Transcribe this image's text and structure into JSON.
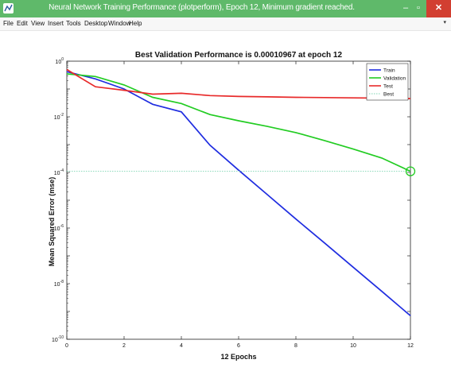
{
  "window": {
    "title": "Neural Network Training Performance (plotperform), Epoch 12, Minimum gradient reached.",
    "controls": {
      "minimize": "–",
      "maximize": "▫",
      "close": "✕"
    }
  },
  "menu": {
    "items": [
      "File",
      "Edit",
      "View",
      "Insert",
      "Tools",
      "Desktop",
      "Window",
      "Help"
    ]
  },
  "colors": {
    "titlebar": "#5fb96a",
    "close": "#d23f31",
    "train": "#1f2de0",
    "validation": "#22cc22",
    "test": "#e82a2a",
    "best": "#7fd6b3"
  },
  "chart_data": {
    "type": "line",
    "title": "Best Validation Performance is 0.00010967 at epoch 12",
    "xlabel": "12 Epochs",
    "ylabel": "Mean Squared Error  (mse)",
    "xlim": [
      0,
      12
    ],
    "ylim": [
      1e-10,
      1
    ],
    "yscale": "log",
    "xticks": [
      0,
      2,
      4,
      6,
      8,
      10,
      12
    ],
    "yticks": [
      {
        "value": 1,
        "label": "10",
        "exp": "0"
      },
      {
        "value": 0.01,
        "label": "10",
        "exp": "-2"
      },
      {
        "value": 0.0001,
        "label": "10",
        "exp": "-4"
      },
      {
        "value": 1e-06,
        "label": "10",
        "exp": "-6"
      },
      {
        "value": 1e-08,
        "label": "10",
        "exp": "-8"
      },
      {
        "value": 1e-10,
        "label": "10",
        "exp": "-10"
      }
    ],
    "legend_position": "top-right",
    "series": [
      {
        "name": "Train",
        "x": [
          0,
          1,
          2,
          3,
          4,
          5,
          6,
          7,
          8,
          9,
          10,
          11,
          12
        ],
        "values": [
          0.42,
          0.23,
          0.1,
          0.028,
          0.015,
          0.00095,
          0.00012,
          1.6e-05,
          2.1e-06,
          2.9e-07,
          3.9e-08,
          5.3e-09,
          7e-10
        ]
      },
      {
        "name": "Validation",
        "x": [
          0,
          1,
          2,
          3,
          4,
          5,
          6,
          7,
          8,
          9,
          10,
          11,
          12
        ],
        "values": [
          0.35,
          0.28,
          0.14,
          0.05,
          0.03,
          0.012,
          0.0072,
          0.0045,
          0.0027,
          0.0014,
          0.00069,
          0.00033,
          0.00010967
        ]
      },
      {
        "name": "Test",
        "x": [
          0,
          1,
          2,
          3,
          4,
          5,
          6,
          7,
          8,
          9,
          10,
          11,
          12
        ],
        "values": [
          0.5,
          0.12,
          0.09,
          0.065,
          0.07,
          0.058,
          0.054,
          0.052,
          0.05,
          0.049,
          0.048,
          0.047,
          0.045
        ]
      },
      {
        "name": "Best",
        "x": [
          0,
          12
        ],
        "values": [
          0.00010967,
          0.00010967
        ],
        "style": "dotted"
      }
    ],
    "best_point": {
      "x": 12,
      "y": 0.00010967
    }
  }
}
